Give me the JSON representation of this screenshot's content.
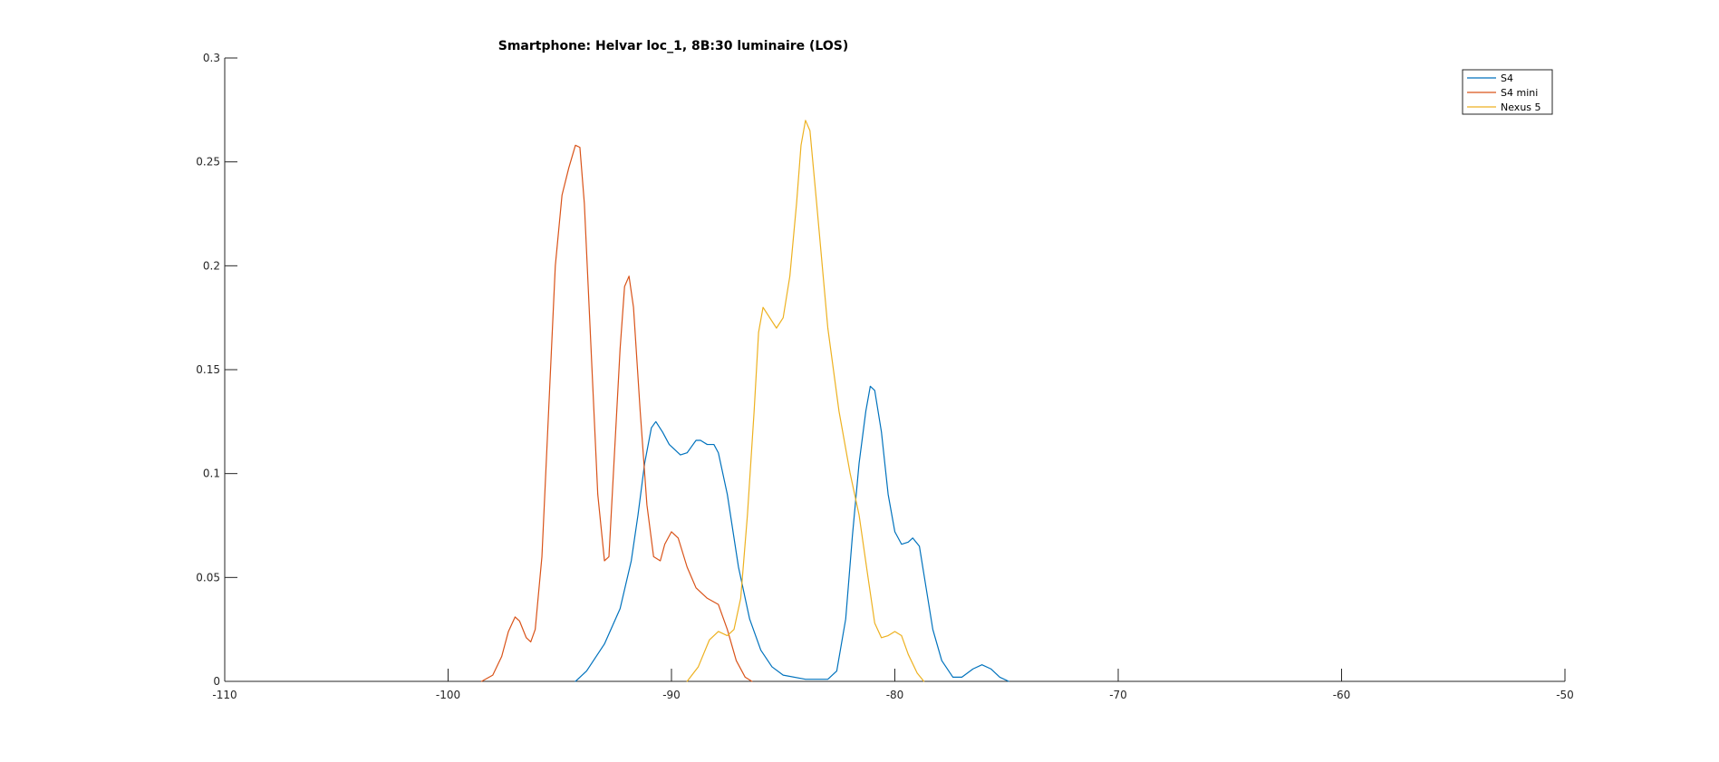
{
  "chart_data": {
    "type": "line",
    "title": "Smartphone: Helvar loc_1, 8B:30 luminaire (LOS)",
    "xlabel": "",
    "ylabel": "",
    "xlim": [
      -110,
      -50
    ],
    "ylim": [
      0,
      0.3
    ],
    "x_ticks": [
      -110,
      -100,
      -90,
      -80,
      -70,
      -60,
      -50
    ],
    "x_tick_labels": [
      "-110",
      "-100",
      "-90",
      "-80",
      "-70",
      "-60",
      "-50"
    ],
    "y_ticks": [
      0,
      0.05,
      0.1,
      0.15,
      0.2,
      0.25,
      0.3
    ],
    "y_tick_labels": [
      "0",
      "0.05",
      "0.1",
      "0.15",
      "0.2",
      "0.25",
      "0.3"
    ],
    "grid": false,
    "legend_position": "top-right",
    "series": [
      {
        "name": "S4",
        "color": "#0072BD",
        "points": [
          [
            -94.3,
            0
          ],
          [
            -93.8,
            0.005
          ],
          [
            -93.0,
            0.018
          ],
          [
            -92.3,
            0.035
          ],
          [
            -91.8,
            0.058
          ],
          [
            -91.5,
            0.08
          ],
          [
            -91.2,
            0.105
          ],
          [
            -90.9,
            0.122
          ],
          [
            -90.7,
            0.125
          ],
          [
            -90.4,
            0.12
          ],
          [
            -90.1,
            0.114
          ],
          [
            -89.6,
            0.109
          ],
          [
            -89.3,
            0.11
          ],
          [
            -88.9,
            0.116
          ],
          [
            -88.7,
            0.116
          ],
          [
            -88.4,
            0.114
          ],
          [
            -88.1,
            0.114
          ],
          [
            -87.9,
            0.11
          ],
          [
            -87.5,
            0.09
          ],
          [
            -87.0,
            0.055
          ],
          [
            -86.5,
            0.03
          ],
          [
            -86.0,
            0.015
          ],
          [
            -85.5,
            0.007
          ],
          [
            -85.0,
            0.003
          ],
          [
            -84.0,
            0.001
          ],
          [
            -83.0,
            0.001
          ],
          [
            -82.6,
            0.005
          ],
          [
            -82.2,
            0.03
          ],
          [
            -81.9,
            0.07
          ],
          [
            -81.6,
            0.105
          ],
          [
            -81.3,
            0.13
          ],
          [
            -81.1,
            0.142
          ],
          [
            -80.9,
            0.14
          ],
          [
            -80.6,
            0.12
          ],
          [
            -80.3,
            0.09
          ],
          [
            -80.0,
            0.072
          ],
          [
            -79.7,
            0.066
          ],
          [
            -79.4,
            0.067
          ],
          [
            -79.2,
            0.069
          ],
          [
            -78.9,
            0.065
          ],
          [
            -78.6,
            0.045
          ],
          [
            -78.3,
            0.025
          ],
          [
            -77.9,
            0.01
          ],
          [
            -77.4,
            0.002
          ],
          [
            -77.0,
            0.002
          ],
          [
            -76.5,
            0.006
          ],
          [
            -76.1,
            0.008
          ],
          [
            -75.7,
            0.006
          ],
          [
            -75.3,
            0.002
          ],
          [
            -74.9,
            0
          ]
        ]
      },
      {
        "name": "S4 mini",
        "color": "#D95319",
        "points": [
          [
            -98.5,
            0
          ],
          [
            -98.0,
            0.003
          ],
          [
            -97.6,
            0.012
          ],
          [
            -97.3,
            0.024
          ],
          [
            -97.0,
            0.031
          ],
          [
            -96.8,
            0.029
          ],
          [
            -96.5,
            0.021
          ],
          [
            -96.3,
            0.019
          ],
          [
            -96.1,
            0.025
          ],
          [
            -95.8,
            0.06
          ],
          [
            -95.5,
            0.13
          ],
          [
            -95.2,
            0.2
          ],
          [
            -94.9,
            0.234
          ],
          [
            -94.6,
            0.247
          ],
          [
            -94.3,
            0.258
          ],
          [
            -94.1,
            0.257
          ],
          [
            -93.9,
            0.23
          ],
          [
            -93.6,
            0.16
          ],
          [
            -93.3,
            0.09
          ],
          [
            -93.0,
            0.058
          ],
          [
            -92.8,
            0.06
          ],
          [
            -92.6,
            0.1
          ],
          [
            -92.3,
            0.16
          ],
          [
            -92.1,
            0.19
          ],
          [
            -91.9,
            0.195
          ],
          [
            -91.7,
            0.18
          ],
          [
            -91.4,
            0.13
          ],
          [
            -91.1,
            0.085
          ],
          [
            -90.8,
            0.06
          ],
          [
            -90.5,
            0.058
          ],
          [
            -90.3,
            0.066
          ],
          [
            -90.0,
            0.072
          ],
          [
            -89.7,
            0.069
          ],
          [
            -89.3,
            0.055
          ],
          [
            -88.9,
            0.045
          ],
          [
            -88.4,
            0.04
          ],
          [
            -87.9,
            0.037
          ],
          [
            -87.5,
            0.025
          ],
          [
            -87.1,
            0.01
          ],
          [
            -86.7,
            0.002
          ],
          [
            -86.4,
            0
          ]
        ]
      },
      {
        "name": "Nexus 5",
        "color": "#EDB120",
        "points": [
          [
            -89.3,
            0
          ],
          [
            -88.8,
            0.007
          ],
          [
            -88.3,
            0.02
          ],
          [
            -87.9,
            0.024
          ],
          [
            -87.5,
            0.022
          ],
          [
            -87.2,
            0.025
          ],
          [
            -86.9,
            0.04
          ],
          [
            -86.6,
            0.08
          ],
          [
            -86.3,
            0.13
          ],
          [
            -86.1,
            0.168
          ],
          [
            -85.9,
            0.18
          ],
          [
            -85.6,
            0.175
          ],
          [
            -85.3,
            0.17
          ],
          [
            -85.0,
            0.175
          ],
          [
            -84.7,
            0.195
          ],
          [
            -84.4,
            0.23
          ],
          [
            -84.2,
            0.258
          ],
          [
            -84.0,
            0.27
          ],
          [
            -83.8,
            0.265
          ],
          [
            -83.5,
            0.23
          ],
          [
            -83.0,
            0.17
          ],
          [
            -82.5,
            0.13
          ],
          [
            -82.0,
            0.1
          ],
          [
            -81.6,
            0.08
          ],
          [
            -81.2,
            0.05
          ],
          [
            -80.9,
            0.028
          ],
          [
            -80.6,
            0.021
          ],
          [
            -80.3,
            0.022
          ],
          [
            -80.0,
            0.024
          ],
          [
            -79.7,
            0.022
          ],
          [
            -79.4,
            0.013
          ],
          [
            -79.0,
            0.004
          ],
          [
            -78.7,
            0
          ]
        ]
      }
    ]
  }
}
